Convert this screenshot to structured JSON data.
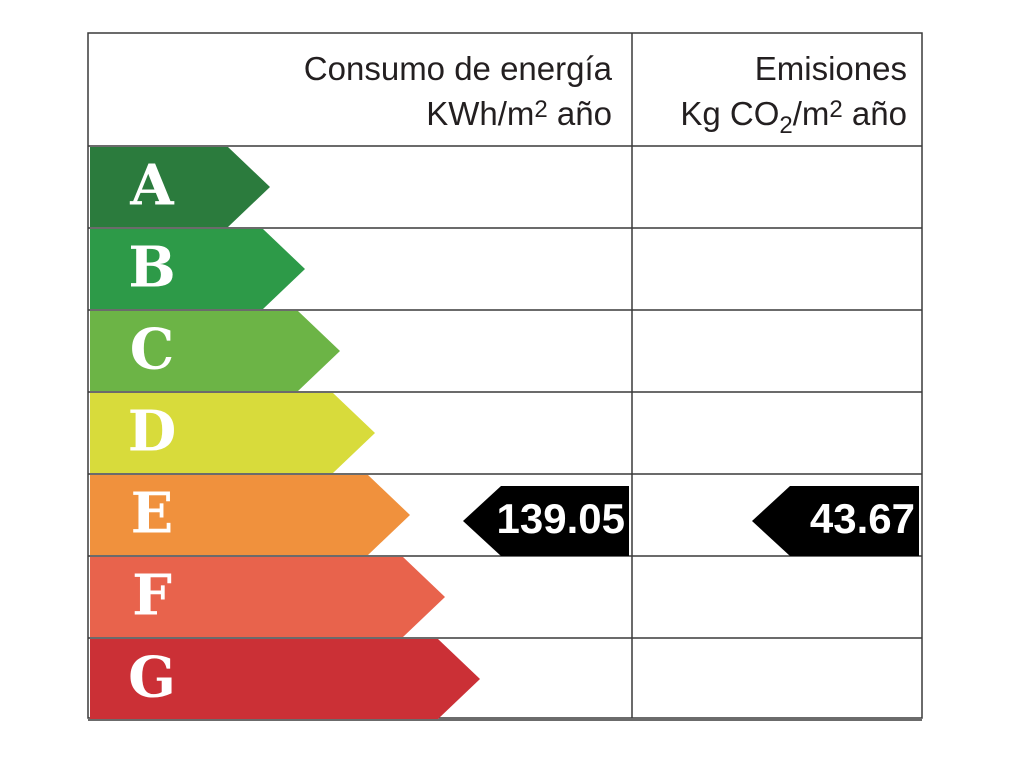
{
  "header": {
    "energy": {
      "line1": "Consumo de energía",
      "line2": [
        "KWh/m",
        "2",
        " año"
      ]
    },
    "emissions": {
      "line1": "Emisiones",
      "line2": [
        "Kg CO",
        "2",
        "/m",
        "2",
        " año"
      ]
    }
  },
  "rows": [
    {
      "letter": "A",
      "color": "#2b7b3d"
    },
    {
      "letter": "B",
      "color": "#2d9a48"
    },
    {
      "letter": "C",
      "color": "#6cb446"
    },
    {
      "letter": "D",
      "color": "#d8db3b"
    },
    {
      "letter": "E",
      "color": "#f0913d"
    },
    {
      "letter": "F",
      "color": "#e8634c"
    },
    {
      "letter": "G",
      "color": "#cb3036"
    }
  ],
  "energy_value": 139.05,
  "emissions_value": 43.67
}
